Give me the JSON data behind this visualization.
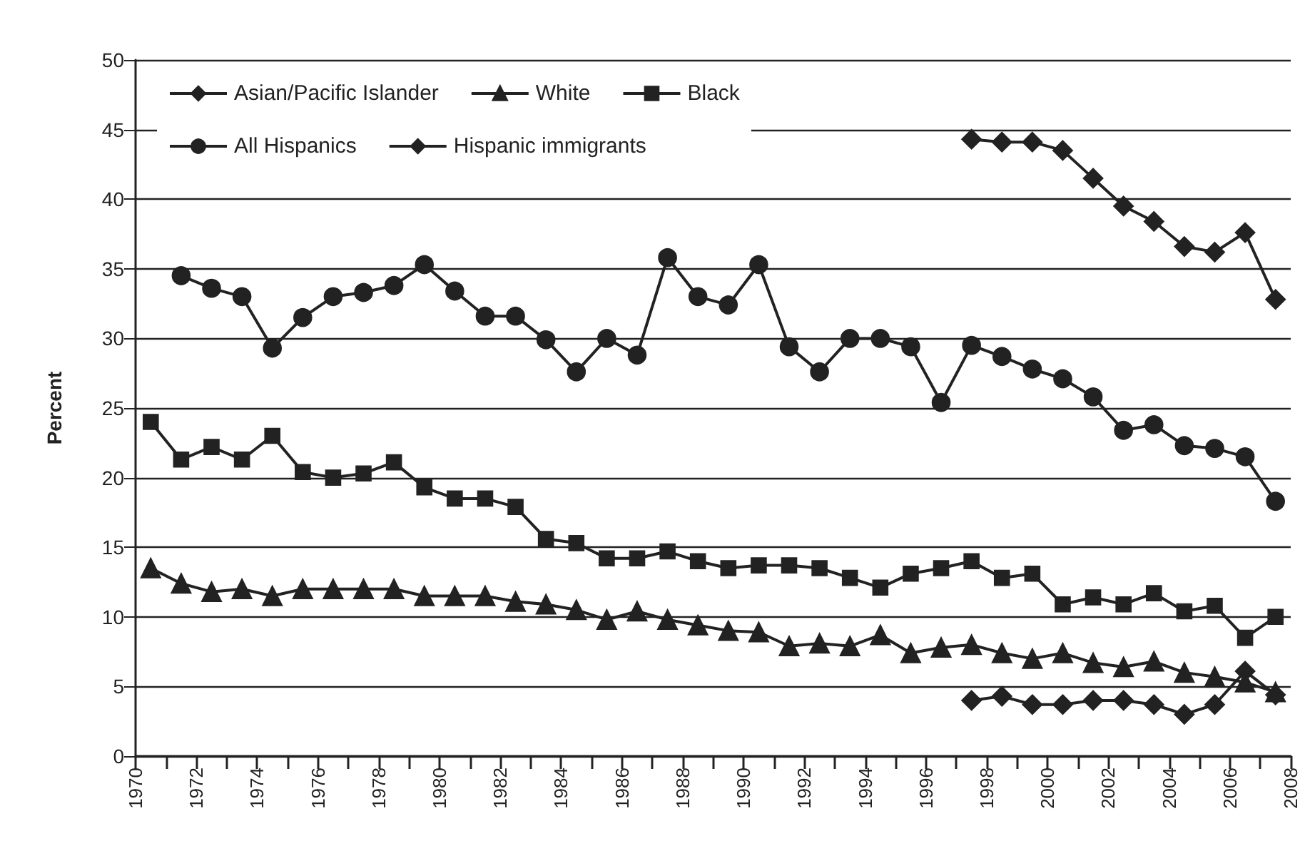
{
  "chart_data": {
    "type": "line",
    "ylabel": "Percent",
    "x": [
      1970.5,
      1971.5,
      1972.5,
      1973.5,
      1974.5,
      1975.5,
      1976.5,
      1977.5,
      1978.5,
      1979.5,
      1980.5,
      1981.5,
      1982.5,
      1983.5,
      1984.5,
      1985.5,
      1986.5,
      1987.5,
      1988.5,
      1989.5,
      1990.5,
      1991.5,
      1992.5,
      1993.5,
      1994.5,
      1995.5,
      1996.5,
      1997.5,
      1998.5,
      1999.5,
      2000.5,
      2001.5,
      2002.5,
      2003.5,
      2004.5,
      2005.5,
      2006.5,
      2007.5
    ],
    "series": [
      {
        "name": "Asian/Pacific Islander",
        "color": "#222222",
        "marker": "diamond",
        "values": [
          null,
          null,
          null,
          null,
          null,
          null,
          null,
          null,
          null,
          null,
          null,
          null,
          null,
          null,
          null,
          null,
          null,
          null,
          null,
          null,
          null,
          null,
          null,
          null,
          null,
          null,
          null,
          4,
          4.3,
          3.7,
          3.7,
          4,
          4,
          3.7,
          3,
          3.7,
          6.1,
          4.4
        ]
      },
      {
        "name": "White",
        "color": "#222222",
        "marker": "triangle",
        "values": [
          13.5,
          12.4,
          11.8,
          12,
          11.5,
          12,
          12,
          12,
          12,
          11.5,
          11.5,
          11.5,
          11.1,
          10.9,
          10.5,
          9.8,
          10.4,
          9.8,
          9.4,
          9,
          8.9,
          7.9,
          8.1,
          7.9,
          8.7,
          7.4,
          7.8,
          8,
          7.4,
          7,
          7.4,
          6.7,
          6.4,
          6.8,
          6,
          5.7,
          5.3,
          4.6
        ]
      },
      {
        "name": "Black",
        "color": "#222222",
        "marker": "square",
        "values": [
          24,
          21.3,
          22.2,
          21.3,
          23,
          20.4,
          20,
          20.3,
          21.1,
          19.3,
          18.5,
          18.5,
          17.9,
          15.6,
          15.3,
          14.2,
          14.2,
          14.7,
          14,
          13.5,
          13.7,
          13.7,
          13.5,
          12.8,
          12.1,
          13.1,
          13.5,
          14,
          12.8,
          13.1,
          10.9,
          11.4,
          10.9,
          11.7,
          10.4,
          10.8,
          8.5,
          10
        ]
      },
      {
        "name": "All Hispanics",
        "color": "#222222",
        "marker": "circle",
        "values": [
          null,
          34.5,
          33.6,
          33,
          29.3,
          31.5,
          33,
          33.3,
          33.8,
          35.3,
          33.4,
          31.6,
          31.6,
          29.9,
          27.6,
          30,
          28.8,
          35.8,
          33,
          32.4,
          35.3,
          29.4,
          27.6,
          30,
          30,
          29.4,
          25.4,
          29.5,
          28.7,
          27.8,
          27.1,
          25.8,
          23.4,
          23.8,
          22.3,
          22.1,
          21.5,
          18.3
        ]
      },
      {
        "name": "Hispanic immigrants",
        "color": "#222222",
        "marker": "diamond",
        "values": [
          null,
          null,
          null,
          null,
          null,
          null,
          null,
          null,
          null,
          null,
          null,
          null,
          null,
          null,
          null,
          null,
          null,
          null,
          null,
          null,
          null,
          null,
          null,
          null,
          null,
          null,
          null,
          44.3,
          44.1,
          44.1,
          43.5,
          41.5,
          39.5,
          38.4,
          36.6,
          36.2,
          37.6,
          32.8
        ]
      }
    ],
    "xlim": [
      1970,
      2008
    ],
    "xticks": [
      1970,
      {
        "value": 1971,
        "label": null
      },
      1972,
      {
        "value": 1973,
        "label": null
      },
      1974,
      {
        "value": 1975,
        "label": null
      },
      1976,
      {
        "value": 1977,
        "label": null
      },
      1978,
      {
        "value": 1979,
        "label": null
      },
      1980,
      {
        "value": 1981,
        "label": null
      },
      1982,
      {
        "value": 1983,
        "label": null
      },
      1984,
      {
        "value": 1985,
        "label": null
      },
      1986,
      {
        "value": 1987,
        "label": null
      },
      1988,
      {
        "value": 1989,
        "label": null
      },
      1990,
      {
        "value": 1991,
        "label": null
      },
      1992,
      {
        "value": 1993,
        "label": null
      },
      1994,
      {
        "value": 1995,
        "label": null
      },
      1996,
      {
        "value": 1997,
        "label": null
      },
      1998,
      {
        "value": 1999,
        "label": null
      },
      2000,
      {
        "value": 2001,
        "label": null
      },
      2002,
      {
        "value": 2003,
        "label": null
      },
      2004,
      {
        "value": 2005,
        "label": null
      },
      2006,
      {
        "value": 2007,
        "label": null
      },
      2008
    ],
    "ylim": [
      0,
      50
    ],
    "yticks": [
      0,
      5,
      10,
      15,
      20,
      25,
      30,
      35,
      40,
      45,
      50
    ],
    "grid": "y",
    "legend": "top left",
    "line_style": "solid"
  }
}
